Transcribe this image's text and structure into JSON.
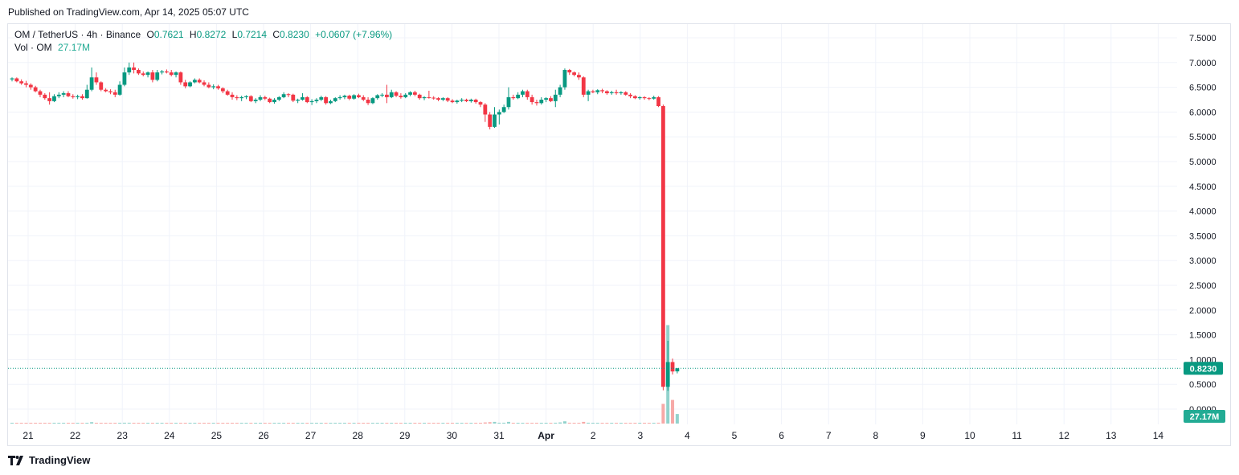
{
  "published": "Published on TradingView.com, Apr 14, 2025 05:07 UTC",
  "legend": {
    "symbol": "OM / TetherUS · 4h · Binance",
    "o_label": "O",
    "o": "0.7621",
    "h_label": "H",
    "h": "0.8272",
    "l_label": "L",
    "l": "0.7214",
    "c_label": "C",
    "c": "0.8230",
    "change": "+0.0607 (+7.96%)"
  },
  "volume_legend": {
    "label": "Vol · OM",
    "value": "27.17M"
  },
  "footer": {
    "brand": "TradingView",
    "logo": "tradingview-logo-icon"
  },
  "colors": {
    "up": "#089981",
    "down": "#f23645",
    "vol_up": "#92d2cc",
    "vol_down": "#f7a9a7",
    "grid": "#f0f3fa"
  },
  "chart_data": {
    "type": "candlestick",
    "title": "OM / TetherUS · 4h · Binance",
    "interval": "4h",
    "y_axis": {
      "position": "right",
      "ylim": [
        0,
        7.75
      ],
      "ticks": [
        "0.0000",
        "0.5000",
        "1.0000",
        "1.5000",
        "2.0000",
        "2.5000",
        "3.0000",
        "3.5000",
        "4.0000",
        "4.5000",
        "5.0000",
        "5.5000",
        "6.0000",
        "6.5000",
        "7.0000",
        "7.5000"
      ],
      "current_price_label": "0.8230",
      "current_price": 0.823,
      "volume_label": "27.17M"
    },
    "x_axis": {
      "labels": [
        "21",
        "22",
        "23",
        "24",
        "25",
        "26",
        "27",
        "28",
        "29",
        "30",
        "31",
        "Apr",
        "2",
        "3",
        "4",
        "5",
        "6",
        "7",
        "8",
        "9",
        "10",
        "11",
        "12",
        "13",
        "14"
      ]
    },
    "grid": true,
    "candles": [
      [
        6.66,
        6.7,
        6.62,
        6.68
      ],
      [
        6.68,
        6.7,
        6.6,
        6.62
      ],
      [
        6.62,
        6.66,
        6.55,
        6.58
      ],
      [
        6.58,
        6.63,
        6.5,
        6.55
      ],
      [
        6.55,
        6.58,
        6.45,
        6.5
      ],
      [
        6.5,
        6.53,
        6.4,
        6.42
      ],
      [
        6.42,
        6.45,
        6.3,
        6.35
      ],
      [
        6.35,
        6.38,
        6.25,
        6.28
      ],
      [
        6.28,
        6.4,
        6.15,
        6.22
      ],
      [
        6.22,
        6.36,
        6.2,
        6.32
      ],
      [
        6.32,
        6.4,
        6.28,
        6.35
      ],
      [
        6.35,
        6.42,
        6.3,
        6.38
      ],
      [
        6.38,
        6.42,
        6.3,
        6.32
      ],
      [
        6.32,
        6.36,
        6.27,
        6.3
      ],
      [
        6.3,
        6.35,
        6.26,
        6.32
      ],
      [
        6.32,
        6.36,
        6.25,
        6.28
      ],
      [
        6.28,
        6.55,
        6.27,
        6.45
      ],
      [
        6.45,
        6.9,
        6.42,
        6.7
      ],
      [
        6.7,
        6.8,
        6.55,
        6.6
      ],
      [
        6.6,
        6.62,
        6.42,
        6.45
      ],
      [
        6.45,
        6.48,
        6.4,
        6.42
      ],
      [
        6.42,
        6.46,
        6.36,
        6.4
      ],
      [
        6.4,
        6.45,
        6.3,
        6.35
      ],
      [
        6.35,
        6.62,
        6.33,
        6.55
      ],
      [
        6.55,
        6.9,
        6.52,
        6.8
      ],
      [
        6.8,
        7.0,
        6.75,
        6.9
      ],
      [
        6.9,
        7.0,
        6.78,
        6.85
      ],
      [
        6.85,
        6.88,
        6.75,
        6.78
      ],
      [
        6.78,
        6.82,
        6.72,
        6.75
      ],
      [
        6.75,
        6.82,
        6.7,
        6.8
      ],
      [
        6.8,
        6.85,
        6.6,
        6.65
      ],
      [
        6.65,
        6.85,
        6.62,
        6.8
      ],
      [
        6.8,
        6.85,
        6.76,
        6.82
      ],
      [
        6.82,
        6.86,
        6.78,
        6.8
      ],
      [
        6.8,
        6.85,
        6.72,
        6.75
      ],
      [
        6.75,
        6.82,
        6.7,
        6.8
      ],
      [
        6.8,
        6.82,
        6.55,
        6.6
      ],
      [
        6.6,
        6.65,
        6.48,
        6.52
      ],
      [
        6.52,
        6.62,
        6.5,
        6.6
      ],
      [
        6.6,
        6.68,
        6.58,
        6.65
      ],
      [
        6.65,
        6.68,
        6.58,
        6.6
      ],
      [
        6.6,
        6.64,
        6.52,
        6.55
      ],
      [
        6.55,
        6.6,
        6.48,
        6.5
      ],
      [
        6.5,
        6.56,
        6.46,
        6.52
      ],
      [
        6.52,
        6.55,
        6.45,
        6.48
      ],
      [
        6.48,
        6.5,
        6.38,
        6.42
      ],
      [
        6.42,
        6.45,
        6.33,
        6.35
      ],
      [
        6.35,
        6.4,
        6.25,
        6.3
      ],
      [
        6.3,
        6.34,
        6.24,
        6.28
      ],
      [
        6.28,
        6.33,
        6.22,
        6.3
      ],
      [
        6.3,
        6.34,
        6.26,
        6.32
      ],
      [
        6.32,
        6.34,
        6.2,
        6.22
      ],
      [
        6.22,
        6.28,
        6.18,
        6.25
      ],
      [
        6.25,
        6.34,
        6.22,
        6.3
      ],
      [
        6.3,
        6.33,
        6.24,
        6.27
      ],
      [
        6.27,
        6.29,
        6.18,
        6.2
      ],
      [
        6.2,
        6.28,
        6.17,
        6.25
      ],
      [
        6.25,
        6.32,
        6.22,
        6.3
      ],
      [
        6.3,
        6.4,
        6.28,
        6.36
      ],
      [
        6.36,
        6.38,
        6.3,
        6.35
      ],
      [
        6.35,
        6.37,
        6.2,
        6.23
      ],
      [
        6.23,
        6.27,
        6.18,
        6.25
      ],
      [
        6.25,
        6.38,
        6.23,
        6.3
      ],
      [
        6.3,
        6.32,
        6.18,
        6.2
      ],
      [
        6.2,
        6.26,
        6.14,
        6.22
      ],
      [
        6.22,
        6.28,
        6.18,
        6.25
      ],
      [
        6.25,
        6.33,
        6.22,
        6.3
      ],
      [
        6.3,
        6.32,
        6.15,
        6.18
      ],
      [
        6.18,
        6.25,
        6.16,
        6.22
      ],
      [
        6.22,
        6.3,
        6.2,
        6.28
      ],
      [
        6.28,
        6.34,
        6.25,
        6.3
      ],
      [
        6.3,
        6.35,
        6.26,
        6.33
      ],
      [
        6.33,
        6.35,
        6.24,
        6.27
      ],
      [
        6.27,
        6.36,
        6.25,
        6.34
      ],
      [
        6.34,
        6.37,
        6.28,
        6.3
      ],
      [
        6.3,
        6.34,
        6.22,
        6.25
      ],
      [
        6.25,
        6.3,
        6.14,
        6.18
      ],
      [
        6.18,
        6.3,
        6.16,
        6.28
      ],
      [
        6.28,
        6.36,
        6.25,
        6.34
      ],
      [
        6.34,
        6.38,
        6.3,
        6.35
      ],
      [
        6.35,
        6.55,
        6.18,
        6.3
      ],
      [
        6.3,
        6.45,
        6.28,
        6.4
      ],
      [
        6.4,
        6.42,
        6.3,
        6.33
      ],
      [
        6.33,
        6.38,
        6.27,
        6.3
      ],
      [
        6.3,
        6.38,
        6.28,
        6.35
      ],
      [
        6.35,
        6.42,
        6.32,
        6.4
      ],
      [
        6.4,
        6.43,
        6.32,
        6.35
      ],
      [
        6.35,
        6.37,
        6.25,
        6.28
      ],
      [
        6.28,
        6.32,
        6.24,
        6.3
      ],
      [
        6.3,
        6.43,
        6.27,
        6.29
      ],
      [
        6.29,
        6.32,
        6.25,
        6.28
      ],
      [
        6.28,
        6.3,
        6.22,
        6.25
      ],
      [
        6.25,
        6.3,
        6.22,
        6.28
      ],
      [
        6.28,
        6.3,
        6.2,
        6.23
      ],
      [
        6.23,
        6.26,
        6.18,
        6.2
      ],
      [
        6.2,
        6.25,
        6.17,
        6.23
      ],
      [
        6.23,
        6.28,
        6.2,
        6.25
      ],
      [
        6.25,
        6.27,
        6.2,
        6.22
      ],
      [
        6.22,
        6.27,
        6.19,
        6.25
      ],
      [
        6.25,
        6.27,
        6.17,
        6.2
      ],
      [
        6.2,
        6.22,
        6.1,
        6.15
      ],
      [
        6.15,
        6.18,
        5.8,
        5.95
      ],
      [
        5.95,
        6.0,
        5.65,
        5.7
      ],
      [
        5.7,
        6.1,
        5.68,
        5.95
      ],
      [
        5.95,
        6.05,
        5.75,
        6.0
      ],
      [
        6.0,
        6.15,
        5.98,
        6.1
      ],
      [
        6.1,
        6.5,
        6.05,
        6.3
      ],
      [
        6.3,
        6.35,
        6.25,
        6.28
      ],
      [
        6.28,
        6.4,
        6.26,
        6.35
      ],
      [
        6.35,
        6.45,
        6.3,
        6.42
      ],
      [
        6.42,
        6.45,
        6.25,
        6.3
      ],
      [
        6.3,
        6.35,
        6.15,
        6.2
      ],
      [
        6.2,
        6.25,
        6.13,
        6.18
      ],
      [
        6.18,
        6.3,
        6.15,
        6.25
      ],
      [
        6.25,
        6.3,
        6.2,
        6.28
      ],
      [
        6.28,
        6.32,
        6.2,
        6.22
      ],
      [
        6.22,
        6.45,
        6.1,
        6.35
      ],
      [
        6.35,
        6.55,
        6.3,
        6.5
      ],
      [
        6.5,
        6.88,
        6.45,
        6.85
      ],
      [
        6.85,
        6.87,
        6.75,
        6.8
      ],
      [
        6.8,
        6.82,
        6.72,
        6.75
      ],
      [
        6.75,
        6.8,
        6.65,
        6.7
      ],
      [
        6.7,
        6.72,
        6.3,
        6.35
      ],
      [
        6.35,
        6.45,
        6.22,
        6.42
      ],
      [
        6.42,
        6.45,
        6.38,
        6.4
      ],
      [
        6.4,
        6.46,
        6.36,
        6.44
      ],
      [
        6.44,
        6.47,
        6.38,
        6.42
      ],
      [
        6.42,
        6.44,
        6.35,
        6.38
      ],
      [
        6.38,
        6.43,
        6.35,
        6.4
      ],
      [
        6.4,
        6.45,
        6.35,
        6.38
      ],
      [
        6.38,
        6.42,
        6.35,
        6.4
      ],
      [
        6.4,
        6.42,
        6.33,
        6.35
      ],
      [
        6.35,
        6.38,
        6.28,
        6.32
      ],
      [
        6.32,
        6.34,
        6.26,
        6.28
      ],
      [
        6.28,
        6.32,
        6.25,
        6.3
      ],
      [
        6.3,
        6.32,
        6.25,
        6.28
      ],
      [
        6.28,
        6.3,
        6.24,
        6.27
      ],
      [
        6.27,
        6.33,
        6.25,
        6.3
      ],
      [
        6.3,
        6.32,
        6.1,
        6.12
      ],
      [
        6.12,
        6.15,
        0.38,
        0.45
      ],
      [
        0.45,
        1.38,
        0.37,
        0.95
      ],
      [
        0.95,
        1.02,
        0.7,
        0.76
      ],
      [
        0.7621,
        0.8272,
        0.7214,
        0.823
      ]
    ],
    "volume": [
      [
        0.008,
        1
      ],
      [
        0.008,
        0
      ],
      [
        0.008,
        0
      ],
      [
        0.008,
        0
      ],
      [
        0.008,
        0
      ],
      [
        0.008,
        0
      ],
      [
        0.01,
        0
      ],
      [
        0.01,
        0
      ],
      [
        0.01,
        0
      ],
      [
        0.01,
        1
      ],
      [
        0.008,
        1
      ],
      [
        0.008,
        1
      ],
      [
        0.008,
        0
      ],
      [
        0.008,
        0
      ],
      [
        0.008,
        1
      ],
      [
        0.008,
        0
      ],
      [
        0.01,
        1
      ],
      [
        0.025,
        1
      ],
      [
        0.01,
        0
      ],
      [
        0.01,
        0
      ],
      [
        0.008,
        0
      ],
      [
        0.008,
        0
      ],
      [
        0.008,
        0
      ],
      [
        0.01,
        1
      ],
      [
        0.015,
        1
      ],
      [
        0.015,
        1
      ],
      [
        0.01,
        0
      ],
      [
        0.01,
        0
      ],
      [
        0.008,
        0
      ],
      [
        0.008,
        1
      ],
      [
        0.01,
        0
      ],
      [
        0.01,
        1
      ],
      [
        0.008,
        1
      ],
      [
        0.008,
        0
      ],
      [
        0.008,
        0
      ],
      [
        0.008,
        1
      ],
      [
        0.01,
        0
      ],
      [
        0.01,
        0
      ],
      [
        0.008,
        1
      ],
      [
        0.008,
        1
      ],
      [
        0.008,
        0
      ],
      [
        0.008,
        0
      ],
      [
        0.008,
        0
      ],
      [
        0.008,
        1
      ],
      [
        0.008,
        0
      ],
      [
        0.008,
        0
      ],
      [
        0.008,
        0
      ],
      [
        0.008,
        0
      ],
      [
        0.008,
        0
      ],
      [
        0.008,
        1
      ],
      [
        0.008,
        1
      ],
      [
        0.008,
        0
      ],
      [
        0.008,
        1
      ],
      [
        0.008,
        1
      ],
      [
        0.008,
        0
      ],
      [
        0.008,
        0
      ],
      [
        0.008,
        1
      ],
      [
        0.008,
        1
      ],
      [
        0.008,
        1
      ],
      [
        0.008,
        0
      ],
      [
        0.008,
        0
      ],
      [
        0.008,
        1
      ],
      [
        0.008,
        1
      ],
      [
        0.008,
        0
      ],
      [
        0.008,
        1
      ],
      [
        0.008,
        1
      ],
      [
        0.008,
        1
      ],
      [
        0.008,
        0
      ],
      [
        0.008,
        1
      ],
      [
        0.008,
        1
      ],
      [
        0.008,
        1
      ],
      [
        0.008,
        1
      ],
      [
        0.008,
        0
      ],
      [
        0.008,
        1
      ],
      [
        0.008,
        0
      ],
      [
        0.008,
        0
      ],
      [
        0.008,
        0
      ],
      [
        0.008,
        1
      ],
      [
        0.008,
        1
      ],
      [
        0.008,
        1
      ],
      [
        0.01,
        0
      ],
      [
        0.008,
        1
      ],
      [
        0.008,
        0
      ],
      [
        0.008,
        0
      ],
      [
        0.008,
        1
      ],
      [
        0.008,
        1
      ],
      [
        0.008,
        0
      ],
      [
        0.008,
        0
      ],
      [
        0.008,
        1
      ],
      [
        0.008,
        0
      ],
      [
        0.008,
        0
      ],
      [
        0.008,
        0
      ],
      [
        0.008,
        1
      ],
      [
        0.008,
        0
      ],
      [
        0.008,
        0
      ],
      [
        0.008,
        1
      ],
      [
        0.008,
        1
      ],
      [
        0.008,
        0
      ],
      [
        0.008,
        1
      ],
      [
        0.008,
        0
      ],
      [
        0.01,
        0
      ],
      [
        0.02,
        0
      ],
      [
        0.025,
        0
      ],
      [
        0.03,
        1
      ],
      [
        0.015,
        1
      ],
      [
        0.015,
        1
      ],
      [
        0.03,
        1
      ],
      [
        0.01,
        0
      ],
      [
        0.01,
        1
      ],
      [
        0.01,
        1
      ],
      [
        0.01,
        0
      ],
      [
        0.01,
        0
      ],
      [
        0.008,
        0
      ],
      [
        0.008,
        1
      ],
      [
        0.008,
        1
      ],
      [
        0.008,
        0
      ],
      [
        0.015,
        1
      ],
      [
        0.02,
        1
      ],
      [
        0.04,
        1
      ],
      [
        0.015,
        0
      ],
      [
        0.01,
        0
      ],
      [
        0.01,
        0
      ],
      [
        0.03,
        0
      ],
      [
        0.015,
        1
      ],
      [
        0.008,
        1
      ],
      [
        0.008,
        1
      ],
      [
        0.008,
        0
      ],
      [
        0.008,
        0
      ],
      [
        0.008,
        1
      ],
      [
        0.008,
        0
      ],
      [
        0.008,
        1
      ],
      [
        0.008,
        0
      ],
      [
        0.008,
        0
      ],
      [
        0.008,
        0
      ],
      [
        0.008,
        1
      ],
      [
        0.008,
        0
      ],
      [
        0.008,
        0
      ],
      [
        0.008,
        1
      ],
      [
        0.015,
        0
      ],
      [
        0.35,
        0
      ],
      [
        1.75,
        1
      ],
      [
        0.42,
        0
      ],
      [
        0.17,
        1
      ]
    ]
  }
}
